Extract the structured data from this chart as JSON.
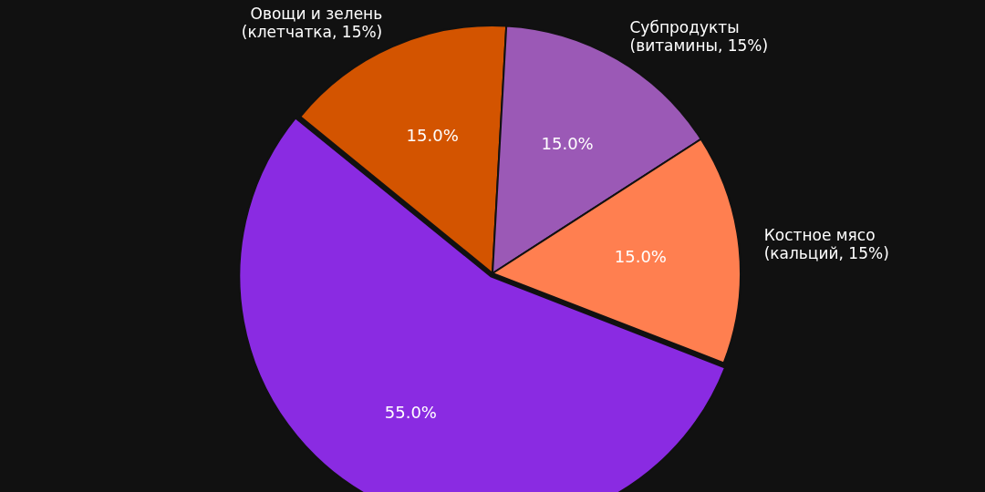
{
  "chart_data": {
    "type": "pie",
    "categories": [
      "Овощи и зелень\n(клетчатка, 15%)",
      "Субпродукты\n(витамины, 15%)",
      "Костное мясо\n(кальций, 15%)",
      null
    ],
    "values": [
      15,
      15,
      15,
      55
    ],
    "colors": [
      "#d35400",
      "#9b59b6",
      "#ff7f50",
      "#8a2be2"
    ],
    "value_labels": [
      "15.0%",
      "15.0%",
      "15.0%",
      "55.0%"
    ]
  }
}
